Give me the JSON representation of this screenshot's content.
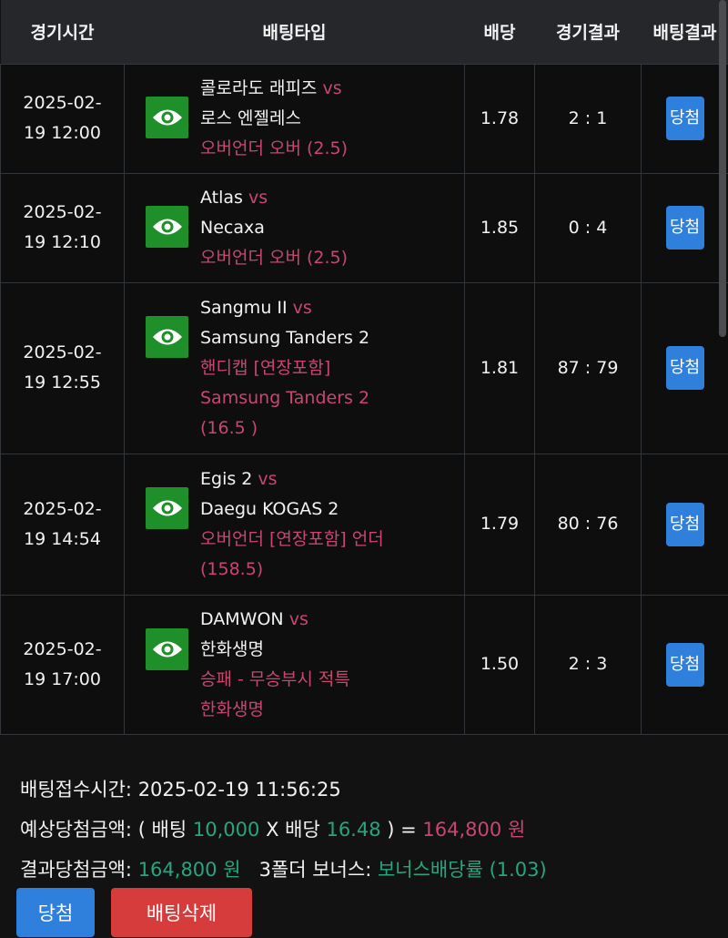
{
  "headers": [
    "경기시간",
    "배팅타입",
    "배당",
    "경기결과",
    "배팅결과"
  ],
  "rows": [
    {
      "time1": "2025-02-",
      "time2": "19 12:00",
      "home": "콜로라도 래피즈",
      "vs": "vs",
      "away": "로스 엔젤레스",
      "pick": [
        "오버언더 오버 (2.5)"
      ],
      "odds": "1.78",
      "score": "2 : 1",
      "result": "당첨"
    },
    {
      "time1": "2025-02-",
      "time2": "19 12:10",
      "home": "Atlas",
      "vs": "vs",
      "away": "Necaxa",
      "pick": [
        "오버언더 오버 (2.5)"
      ],
      "odds": "1.85",
      "score": "0 : 4",
      "result": "당첨"
    },
    {
      "time1": "2025-02-",
      "time2": "19 12:55",
      "home": "Sangmu II",
      "vs": "vs",
      "away": "Samsung Tanders 2",
      "pick": [
        "핸디캡 [연장포함]",
        "Samsung Tanders 2",
        "(16.5 )"
      ],
      "odds": "1.81",
      "score": "87 : 79",
      "result": "당첨"
    },
    {
      "time1": "2025-02-",
      "time2": "19 14:54",
      "home": "Egis 2",
      "vs": "vs",
      "away": "Daegu KOGAS 2",
      "pick": [
        "오버언더 [연장포함] 언더",
        "(158.5)"
      ],
      "odds": "1.79",
      "score": "80 : 76",
      "result": "당첨"
    },
    {
      "time1": "2025-02-",
      "time2": "19 17:00",
      "home": "DAMWON",
      "vs": "vs",
      "away": "한화생명",
      "pick": [
        "승패 - 무승부시 적특",
        "한화생명"
      ],
      "odds": "1.50",
      "score": "2 : 3",
      "result": "당첨"
    }
  ],
  "summary": {
    "accept_label": "배팅접수시간:",
    "accept_time": "2025-02-19 11:56:25",
    "expected_label": "예상당첨금액:",
    "open": "( 배팅",
    "stake": "10,000",
    "x": "X 배당",
    "total_odds": "16.48",
    "close": ") =",
    "expected": "164,800 원",
    "result_label": "결과당첨금액:",
    "result_amount": "164,800 원",
    "bonus_label": "3폴더 보너스:",
    "bonus": "보너스배당률 (1.03)"
  },
  "buttons": {
    "win": "당첨",
    "delete": "배팅삭제"
  },
  "colors": {
    "accent_blue": "#2f7fdc",
    "pink": "#c8466f",
    "green": "#27a57e",
    "red": "#d63c3c",
    "eye_green": "#1f8f2a"
  }
}
